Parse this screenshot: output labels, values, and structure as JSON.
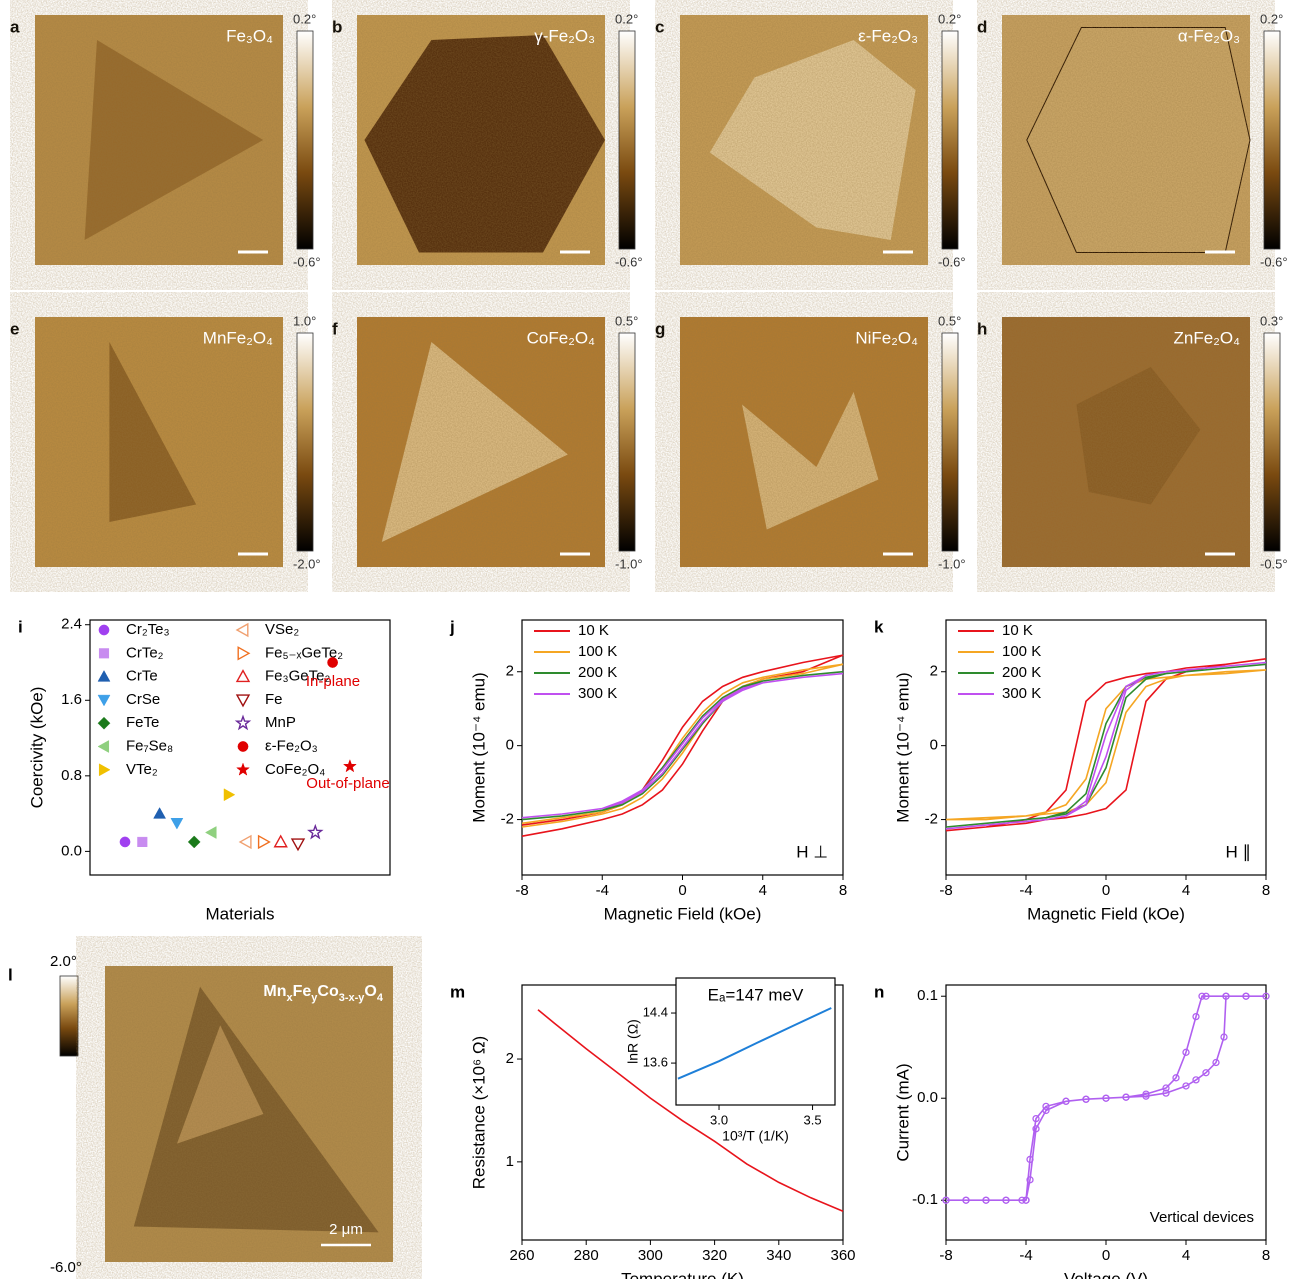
{
  "panels": [
    {
      "letter": "a",
      "label": "Fe₃O₄",
      "cbar_max": "0.2°",
      "cbar_min": "-0.6°"
    },
    {
      "letter": "b",
      "label": "γ-Fe₂O₃",
      "cbar_max": "0.2°",
      "cbar_min": "-0.6°"
    },
    {
      "letter": "c",
      "label": "ε-Fe₂O₃",
      "cbar_max": "0.2°",
      "cbar_min": "-0.6°"
    },
    {
      "letter": "d",
      "label": "α-Fe₂O₃",
      "cbar_max": "0.2°",
      "cbar_min": "-0.6°"
    },
    {
      "letter": "e",
      "label": "MnFe₂O₄",
      "cbar_max": "1.0°",
      "cbar_min": "-2.0°"
    },
    {
      "letter": "f",
      "label": "CoFe₂O₄",
      "cbar_max": "0.5°",
      "cbar_min": "-1.0°"
    },
    {
      "letter": "g",
      "label": "NiFe₂O₄",
      "cbar_max": "0.5°",
      "cbar_min": "-1.0°"
    },
    {
      "letter": "h",
      "label": "ZnFe₂O₄",
      "cbar_max": "0.3°",
      "cbar_min": "-0.5°"
    }
  ],
  "panel_l": {
    "letter": "l",
    "label_parts": [
      "Mn",
      "x",
      "Fe",
      "y",
      "Co",
      "3-x-y",
      "O",
      "4"
    ],
    "cbar_max": "2.0°",
    "cbar_min": "-6.0°",
    "scale_bar": "2 μm"
  },
  "chart_data": [
    {
      "type": "scatter",
      "letter": "i",
      "ylabel": "Coercivity (kOe)",
      "xlabel": "Materials",
      "ylim": [
        -0.25,
        2.45
      ],
      "yticks": [
        {
          "value": 0,
          "label": "0.0"
        },
        0.8,
        1.6,
        2.4
      ],
      "categories": [
        "Cr₂Te₃",
        "CrTe₂",
        "CrTe",
        "CrSe",
        "FeTe",
        "Fe₇Se₈",
        "VTe₂",
        "VSe₂",
        "Fe₅₋ₓGeTe₂",
        "Fe₃GeTe₂",
        "Fe",
        "MnP",
        "ε-Fe₂O₃",
        "CoFe₂O₄"
      ],
      "values": [
        0.1,
        0.1,
        0.4,
        0.3,
        0.1,
        0.2,
        0.6,
        0.1,
        0.1,
        0.1,
        0.08,
        0.2,
        2.0,
        0.9
      ],
      "colors": [
        "#a040f0",
        "#c88cf0",
        "#1f5fb0",
        "#3ea0e8",
        "#1a7a1a",
        "#8fd07f",
        "#f0c000",
        "#f0a070",
        "#f07020",
        "#e02020",
        "#a01010",
        "#6a2a9a",
        "#e00000",
        "#e00000"
      ],
      "markers": [
        "circle",
        "square",
        "triangle-up",
        "triangle-down",
        "diamond",
        "triangle-left",
        "triangle-right",
        "triangle-left-open",
        "triangle-right-open",
        "triangle-up-open",
        "triangle-down-open",
        "star-open",
        "sphere",
        "star"
      ],
      "annotations": [
        {
          "text": "In-plane",
          "color": "#e00000"
        },
        {
          "text": "Out-of-plane",
          "color": "#e00000"
        }
      ]
    },
    {
      "type": "line",
      "letter": "j",
      "xlabel": "Magnetic Field (kOe)",
      "ylabel": "Moment (10⁻⁴ emu)",
      "annotation": "H ⊥",
      "xlim": [
        -8,
        8
      ],
      "xticks": [
        -8,
        -4,
        0,
        4,
        8
      ],
      "ylim": [
        -3.5,
        3.4
      ],
      "yticks": [
        -2,
        0,
        2
      ],
      "legend": "upper left",
      "x": [
        -8,
        -6,
        -4,
        -3,
        -2,
        -1,
        0,
        1,
        2,
        3,
        4,
        6,
        8,
        6,
        4,
        3,
        2,
        1,
        0,
        -1,
        -2,
        -3,
        -4,
        -6,
        -8
      ],
      "series": [
        {
          "name": "10 K",
          "color": "#e8141c",
          "values": [
            -2.45,
            -2.25,
            -2.0,
            -1.85,
            -1.6,
            -1.2,
            -0.5,
            0.4,
            1.2,
            1.6,
            1.8,
            2.0,
            2.45,
            2.25,
            2.0,
            1.85,
            1.6,
            1.2,
            0.5,
            -0.4,
            -1.2,
            -1.6,
            -1.8,
            -2.0,
            -2.15
          ]
        },
        {
          "name": "100 K",
          "color": "#f5a623",
          "values": [
            -2.2,
            -2.05,
            -1.85,
            -1.7,
            -1.4,
            -0.9,
            -0.2,
            0.6,
            1.25,
            1.6,
            1.8,
            1.95,
            2.2,
            2.05,
            1.85,
            1.7,
            1.4,
            0.9,
            0.2,
            -0.6,
            -1.25,
            -1.6,
            -1.8,
            -1.95,
            -2.1
          ]
        },
        {
          "name": "200 K",
          "color": "#2e8b2e",
          "values": [
            -2.0,
            -1.9,
            -1.75,
            -1.6,
            -1.3,
            -0.8,
            -0.1,
            0.6,
            1.2,
            1.55,
            1.75,
            1.9,
            2.0,
            1.9,
            1.75,
            1.6,
            1.3,
            0.8,
            0.1,
            -0.6,
            -1.2,
            -1.55,
            -1.75,
            -1.9,
            -2.0
          ]
        },
        {
          "name": "300 K",
          "color": "#c050f0",
          "values": [
            -1.95,
            -1.85,
            -1.7,
            -1.55,
            -1.25,
            -0.75,
            -0.05,
            0.65,
            1.2,
            1.5,
            1.7,
            1.85,
            1.95,
            1.85,
            1.7,
            1.55,
            1.25,
            0.75,
            0.05,
            -0.65,
            -1.2,
            -1.5,
            -1.7,
            -1.85,
            -1.95
          ]
        }
      ]
    },
    {
      "type": "line",
      "letter": "k",
      "xlabel": "Magnetic Field (kOe)",
      "ylabel": "Moment (10⁻⁴ emu)",
      "annotation": "H ∥",
      "xlim": [
        -8,
        8
      ],
      "xticks": [
        -8,
        -4,
        0,
        4,
        8
      ],
      "ylim": [
        -3.5,
        3.4
      ],
      "yticks": [
        -2,
        0,
        2
      ],
      "legend": "upper left",
      "x": [
        -8,
        -6,
        -4,
        -3,
        -2,
        -1,
        0,
        1,
        2,
        3,
        4,
        6,
        8,
        6,
        4,
        3,
        2,
        1,
        0,
        -1,
        -2,
        -3,
        -4,
        -6,
        -8
      ],
      "series": [
        {
          "name": "10 K",
          "color": "#e8141c",
          "values": [
            -2.3,
            -2.2,
            -2.1,
            -2.0,
            -1.95,
            -1.85,
            -1.7,
            -1.2,
            1.2,
            1.8,
            2.0,
            2.2,
            2.35,
            2.2,
            2.1,
            2.0,
            1.95,
            1.85,
            1.7,
            1.2,
            -1.2,
            -1.8,
            -2.0,
            -2.2,
            -2.3
          ]
        },
        {
          "name": "100 K",
          "color": "#f5a623",
          "values": [
            -2.0,
            -1.95,
            -1.9,
            -1.85,
            -1.8,
            -1.6,
            -1.0,
            0.9,
            1.6,
            1.8,
            1.9,
            2.0,
            2.05,
            1.95,
            1.9,
            1.85,
            1.8,
            1.6,
            1.0,
            -0.9,
            -1.6,
            -1.8,
            -1.9,
            -2.0,
            -2.0
          ]
        },
        {
          "name": "200 K",
          "color": "#2e8b2e",
          "values": [
            -2.2,
            -2.1,
            -2.0,
            -1.95,
            -1.85,
            -1.6,
            -0.6,
            1.3,
            1.8,
            1.95,
            2.0,
            2.1,
            2.2,
            2.1,
            2.0,
            1.95,
            1.85,
            1.6,
            0.6,
            -1.3,
            -1.8,
            -1.95,
            -2.0,
            -2.1,
            -2.2
          ]
        },
        {
          "name": "300 K",
          "color": "#c050f0",
          "values": [
            -2.25,
            -2.15,
            -2.05,
            -2.0,
            -1.9,
            -1.6,
            -0.3,
            1.5,
            1.9,
            2.0,
            2.05,
            2.15,
            2.25,
            2.15,
            2.05,
            2.0,
            1.9,
            1.6,
            0.3,
            -1.5,
            -1.9,
            -2.0,
            -2.05,
            -2.15,
            -2.25
          ]
        }
      ]
    },
    {
      "type": "line",
      "letter": "m",
      "xlabel": "Temperature (K)",
      "ylabel": "Resistance (×10⁶ Ω)",
      "xlim": [
        260,
        360
      ],
      "xticks": [
        260,
        280,
        300,
        320,
        340,
        360
      ],
      "ylim": [
        0.24,
        2.72
      ],
      "yticks": [
        1,
        2
      ],
      "x": [
        265,
        270,
        280,
        290,
        300,
        310,
        320,
        330,
        340,
        350,
        360
      ],
      "values": [
        2.48,
        2.35,
        2.1,
        1.86,
        1.62,
        1.4,
        1.2,
        0.98,
        0.8,
        0.65,
        0.52
      ],
      "color": "#e8141c"
    },
    {
      "type": "line",
      "title": "Eₐ=147 meV",
      "xlabel": "10³/T (1/K)",
      "ylabel": "lnR (Ω)",
      "xlim": [
        2.77,
        3.62
      ],
      "xticks": [
        {
          "value": 3,
          "label": "3.0"
        },
        3.5
      ],
      "ylim": [
        12.93,
        14.96
      ],
      "yticks": [
        13.6,
        14.4
      ],
      "x": [
        2.78,
        3.0,
        3.2,
        3.4,
        3.6
      ],
      "values": [
        13.35,
        13.63,
        13.92,
        14.2,
        14.48
      ],
      "color": "#1e7fd8"
    },
    {
      "type": "line",
      "letter": "n",
      "xlabel": "Voltage (V)",
      "ylabel": "Current (mA)",
      "annotation": "Vertical devices",
      "markers": true,
      "xlim": [
        -8,
        8
      ],
      "xticks": [
        -8,
        -4,
        0,
        4,
        8
      ],
      "ylim": [
        -0.139,
        0.111
      ],
      "yticks": [
        -0.1,
        {
          "value": 0,
          "label": "0.0"
        },
        0.1
      ],
      "x": [
        -8,
        -7,
        -6,
        -5,
        -4.2,
        -4,
        -3.8,
        -3.5,
        -3,
        -2,
        -1,
        0,
        1,
        2,
        3,
        3.5,
        4,
        4.5,
        4.8,
        5,
        6,
        7,
        8,
        7,
        6,
        5.9,
        5.5,
        5,
        4.5,
        4,
        3,
        2,
        1,
        0,
        -1,
        -2,
        -3,
        -3.5,
        -3.8,
        -4,
        -5,
        -6,
        -7,
        -8
      ],
      "values": [
        -0.1,
        -0.1,
        -0.1,
        -0.1,
        -0.1,
        -0.1,
        -0.06,
        -0.02,
        -0.008,
        -0.003,
        -0.001,
        0,
        0.001,
        0.004,
        0.01,
        0.02,
        0.045,
        0.08,
        0.1,
        0.1,
        0.1,
        0.1,
        0.1,
        0.1,
        0.1,
        0.06,
        0.035,
        0.025,
        0.018,
        0.012,
        0.005,
        0.002,
        0.001,
        0,
        -0.001,
        -0.003,
        -0.012,
        -0.03,
        -0.08,
        -0.1,
        -0.1,
        -0.1,
        -0.1,
        -0.1
      ],
      "color": "#b060f0"
    }
  ]
}
